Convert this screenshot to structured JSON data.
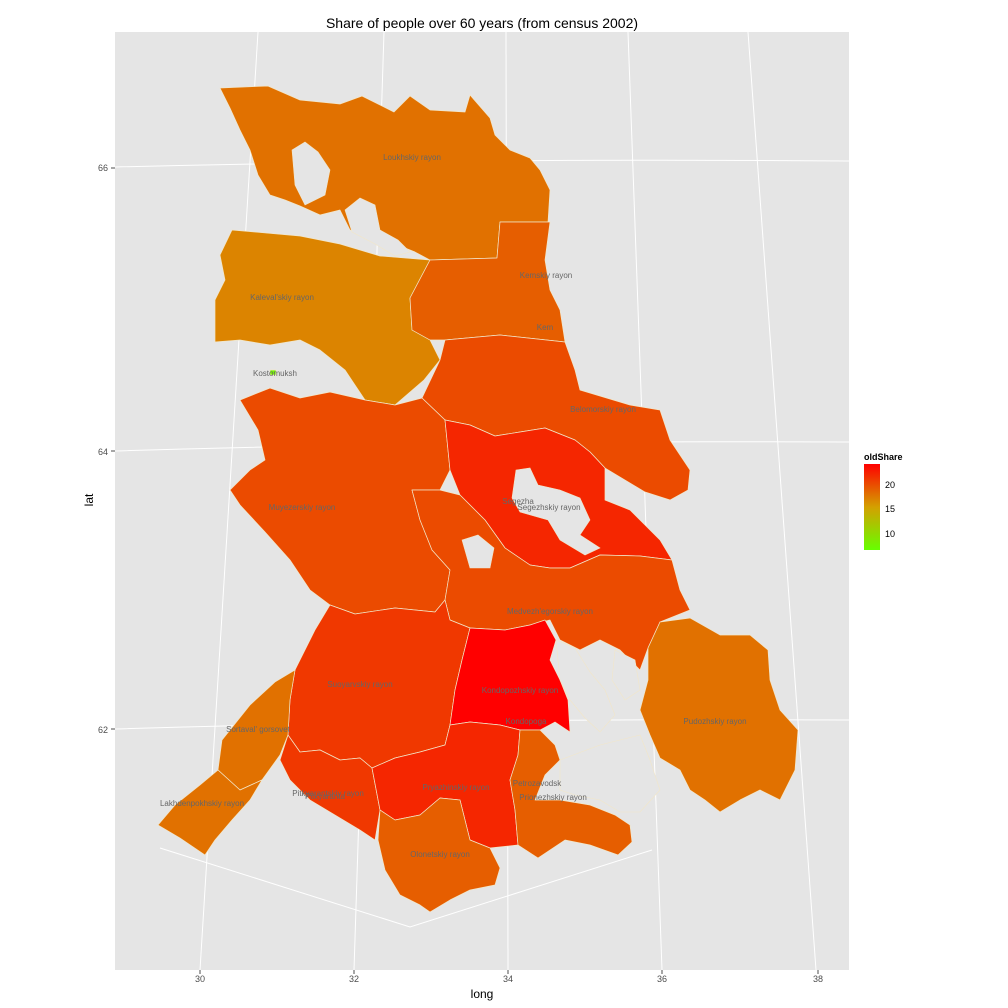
{
  "chart_data": {
    "type": "choropleth",
    "title": "Share of people over 60 years (from census 2002)",
    "xlabel": "long",
    "ylabel": "lat",
    "x_ticks": [
      "30",
      "32",
      "34",
      "36",
      "38"
    ],
    "y_ticks": [
      "66",
      "64",
      "62"
    ],
    "legend": {
      "title": "oldShare",
      "ticks": [
        "20",
        "15",
        "10"
      ],
      "range": [
        7,
        24
      ],
      "colors": [
        "#66ff00",
        "#ff0000"
      ],
      "placement": "right"
    },
    "regions": [
      {
        "name": "Loukhskiy rayon",
        "value": 18
      },
      {
        "name": "Kemskiy rayon",
        "value": 19
      },
      {
        "name": "Kem",
        "value": 19
      },
      {
        "name": "Kaleval'skiy rayon",
        "value": 17
      },
      {
        "name": "Kostomuksh",
        "value": 8
      },
      {
        "name": "Belomorskiy rayon",
        "value": 20
      },
      {
        "name": "Muyezerskiy rayon",
        "value": 20
      },
      {
        "name": "Segezha",
        "value": 22
      },
      {
        "name": "Segezhskiy rayon",
        "value": 22
      },
      {
        "name": "Medvezh'egorskiy rayon",
        "value": 20
      },
      {
        "name": "Suoyarvskiy rayon",
        "value": 21
      },
      {
        "name": "Kondopozhskiy rayon",
        "value": 24
      },
      {
        "name": "Kondopoga",
        "value": 24
      },
      {
        "name": "Pudozhskiy rayon",
        "value": 18
      },
      {
        "name": "Sortaval' gorsovet",
        "value": 18
      },
      {
        "name": "Lakhdenpokhskiy rayon",
        "value": 18
      },
      {
        "name": "Pitkyarantskiy rayon",
        "value": 21
      },
      {
        "name": "Pitkyaranta",
        "value": 21
      },
      {
        "name": "Pryazhinskiy rayon",
        "value": 22
      },
      {
        "name": "Petrozavodsk",
        "value": 19
      },
      {
        "name": "Prionezhskiy rayon",
        "value": 19
      },
      {
        "name": "Olonetskiy rayon",
        "value": 19
      }
    ]
  }
}
